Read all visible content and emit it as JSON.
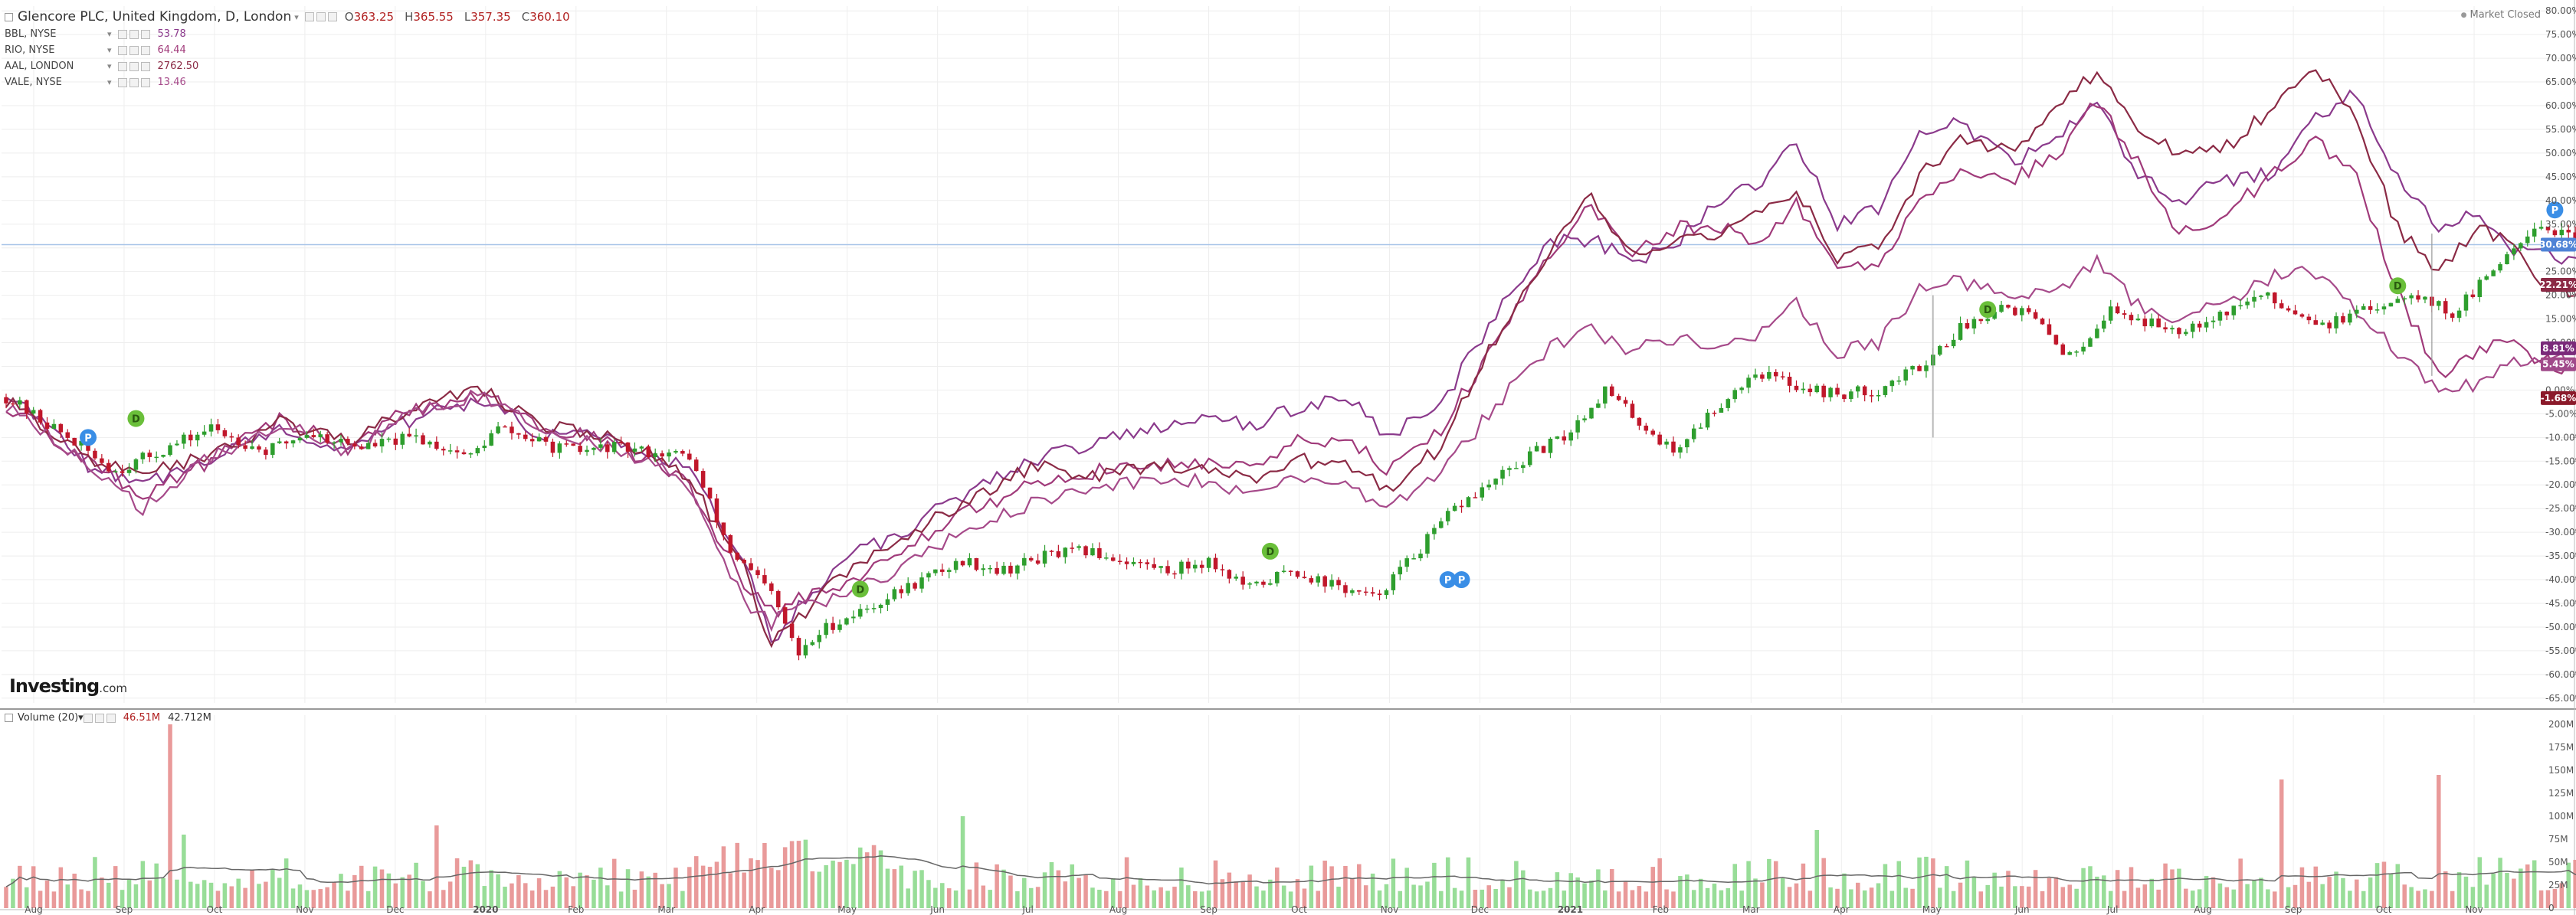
{
  "header": {
    "title": "Glencore PLC, United Kingdom, D, London",
    "open_label": "O",
    "open": "363.25",
    "high_label": "H",
    "high": "365.55",
    "low_label": "L",
    "low": "357.35",
    "close_label": "C",
    "close": "360.10",
    "status": "Market Closed"
  },
  "compare": [
    {
      "symbol": "BBL, NYSE",
      "value": "53.78",
      "color": "#8b3a8c"
    },
    {
      "symbol": "RIO, NYSE",
      "value": "64.44",
      "color": "#a03a7a"
    },
    {
      "symbol": "AAL, LONDON",
      "value": "2762.50",
      "color": "#8b2a45"
    },
    {
      "symbol": "VALE, NYSE",
      "value": "13.46",
      "color": "#a64a8a"
    }
  ],
  "logo": {
    "main": "Investing",
    "suffix": ".com"
  },
  "volume": {
    "label": "Volume (20)",
    "value": "46.51M",
    "ma": "42.712M"
  },
  "colors": {
    "up": "#2e9e2e",
    "down": "#c0172b",
    "vol_up": "#98dd98",
    "vol_down": "#e99a9a",
    "grid": "#eeeeee",
    "hline": "#a8c4e8"
  },
  "chart_data": {
    "type": "line",
    "x": [
      "Aug",
      "Sep",
      "Oct",
      "Nov",
      "Dec",
      "2020",
      "Feb",
      "Mar",
      "Apr",
      "May",
      "Jun",
      "Jul",
      "Aug",
      "Sep",
      "Oct",
      "Nov",
      "Dec",
      "2021",
      "Feb",
      "Mar",
      "Apr",
      "May",
      "Jun",
      "Jul",
      "Aug",
      "Sep",
      "Oct",
      "Nov"
    ],
    "y_axis_ticks": [
      "80.00%",
      "75.00%",
      "70.00%",
      "65.00%",
      "60.00%",
      "55.00%",
      "50.00%",
      "45.00%",
      "40.00%",
      "35.00%",
      "30.00%",
      "25.00%",
      "20.00%",
      "15.00%",
      "10.00%",
      "5.00%",
      "0.00%",
      "-5.00%",
      "-10.00%",
      "-15.00%",
      "-20.00%",
      "-25.00%",
      "-30.00%",
      "-35.00%",
      "-40.00%",
      "-45.00%",
      "-50.00%",
      "-55.00%",
      "-60.00%",
      "-65.00%"
    ],
    "ylim": [
      -66,
      81
    ],
    "badges": [
      {
        "label": "30.68%",
        "value": 30.68,
        "color": "#4f83d6"
      },
      {
        "label": "22.21%",
        "value": 22.21,
        "color": "#8b2a45"
      },
      {
        "label": "8.81%",
        "value": 8.81,
        "color": "#7a2a7a"
      },
      {
        "label": "5.45%",
        "value": 5.45,
        "color": "#a04a8a"
      },
      {
        "label": "-1.68%",
        "value": -1.68,
        "color": "#8b1a2a"
      }
    ],
    "main_series": [
      [
        0,
        -1.5
      ],
      [
        8,
        -9
      ],
      [
        16,
        -17
      ],
      [
        24,
        -12
      ],
      [
        30,
        -8
      ],
      [
        38,
        -13
      ],
      [
        44,
        -9
      ],
      [
        52,
        -12
      ],
      [
        60,
        -10
      ],
      [
        68,
        -14
      ],
      [
        72,
        -8
      ],
      [
        80,
        -12
      ],
      [
        84,
        -13
      ],
      [
        88,
        -12
      ],
      [
        94,
        -13
      ],
      [
        100,
        -14
      ],
      [
        106,
        -34
      ],
      [
        112,
        -43
      ],
      [
        116,
        -56
      ],
      [
        120,
        -50
      ],
      [
        126,
        -46
      ],
      [
        134,
        -40
      ],
      [
        140,
        -36
      ],
      [
        146,
        -38
      ],
      [
        152,
        -35
      ],
      [
        158,
        -34
      ],
      [
        164,
        -36
      ],
      [
        170,
        -38
      ],
      [
        176,
        -36
      ],
      [
        182,
        -42
      ],
      [
        188,
        -38
      ],
      [
        194,
        -41
      ],
      [
        200,
        -44
      ],
      [
        206,
        -35
      ],
      [
        212,
        -25
      ],
      [
        218,
        -19
      ],
      [
        224,
        -13
      ],
      [
        228,
        -10
      ],
      [
        234,
        0
      ],
      [
        240,
        -8
      ],
      [
        244,
        -13
      ],
      [
        250,
        -4
      ],
      [
        256,
        4
      ],
      [
        262,
        1
      ],
      [
        268,
        -1
      ],
      [
        274,
        0
      ],
      [
        280,
        5
      ],
      [
        286,
        13
      ],
      [
        292,
        18
      ],
      [
        296,
        16
      ],
      [
        302,
        7
      ],
      [
        308,
        17
      ],
      [
        314,
        14
      ],
      [
        318,
        13
      ],
      [
        324,
        16
      ],
      [
        330,
        20
      ],
      [
        336,
        16
      ],
      [
        340,
        14
      ],
      [
        346,
        17
      ],
      [
        352,
        21
      ],
      [
        358,
        16
      ],
      [
        362,
        22
      ],
      [
        366,
        29
      ],
      [
        370,
        35
      ],
      [
        374,
        33
      ],
      [
        377,
        30
      ]
    ],
    "compare_series": [
      {
        "values": [
          [
            0,
            0
          ],
          [
            12,
            -16
          ],
          [
            20,
            -20
          ],
          [
            30,
            -14
          ],
          [
            40,
            -8
          ],
          [
            50,
            -13
          ],
          [
            58,
            -7
          ],
          [
            64,
            -4
          ],
          [
            70,
            -2
          ],
          [
            78,
            -9
          ],
          [
            86,
            -10
          ],
          [
            94,
            -13
          ],
          [
            100,
            -17
          ],
          [
            108,
            -36
          ],
          [
            112,
            -53
          ],
          [
            116,
            -46
          ],
          [
            122,
            -36
          ],
          [
            130,
            -31
          ],
          [
            140,
            -22
          ],
          [
            150,
            -15
          ],
          [
            160,
            -11
          ],
          [
            170,
            -7
          ],
          [
            176,
            -5
          ],
          [
            182,
            -8
          ],
          [
            188,
            -4
          ],
          [
            196,
            -1
          ],
          [
            202,
            -10
          ],
          [
            210,
            -3
          ],
          [
            218,
            16
          ],
          [
            226,
            31
          ],
          [
            232,
            32
          ],
          [
            238,
            27
          ],
          [
            244,
            30
          ],
          [
            250,
            40
          ],
          [
            256,
            43
          ],
          [
            262,
            52
          ],
          [
            268,
            35
          ],
          [
            274,
            38
          ],
          [
            280,
            55
          ],
          [
            286,
            56
          ],
          [
            294,
            48
          ],
          [
            300,
            53
          ],
          [
            306,
            60
          ],
          [
            312,
            45
          ],
          [
            318,
            40
          ],
          [
            324,
            44
          ],
          [
            332,
            46
          ],
          [
            338,
            57
          ],
          [
            344,
            63
          ],
          [
            350,
            45
          ],
          [
            356,
            35
          ],
          [
            362,
            37
          ],
          [
            366,
            30
          ],
          [
            370,
            30
          ],
          [
            376,
            27
          ]
        ],
        "color": "#8b3a8c"
      },
      {
        "values": [
          [
            0,
            -3
          ],
          [
            12,
            -15
          ],
          [
            20,
            -22
          ],
          [
            30,
            -15
          ],
          [
            40,
            -6
          ],
          [
            50,
            -12
          ],
          [
            58,
            -5
          ],
          [
            64,
            -3
          ],
          [
            70,
            -1
          ],
          [
            78,
            -8
          ],
          [
            86,
            -10
          ],
          [
            94,
            -15
          ],
          [
            100,
            -20
          ],
          [
            108,
            -41
          ],
          [
            112,
            -47
          ],
          [
            116,
            -44
          ],
          [
            122,
            -42
          ],
          [
            130,
            -35
          ],
          [
            140,
            -26
          ],
          [
            150,
            -20
          ],
          [
            160,
            -17
          ],
          [
            170,
            -16
          ],
          [
            176,
            -15
          ],
          [
            182,
            -17
          ],
          [
            188,
            -11
          ],
          [
            196,
            -10
          ],
          [
            202,
            -17
          ],
          [
            210,
            -8
          ],
          [
            218,
            10
          ],
          [
            226,
            28
          ],
          [
            232,
            39
          ],
          [
            238,
            29
          ],
          [
            244,
            34
          ],
          [
            250,
            35
          ],
          [
            256,
            31
          ],
          [
            262,
            39
          ],
          [
            268,
            27
          ],
          [
            274,
            25
          ],
          [
            280,
            40
          ],
          [
            286,
            46
          ],
          [
            294,
            45
          ],
          [
            300,
            49
          ],
          [
            306,
            61
          ],
          [
            312,
            48
          ],
          [
            318,
            33
          ],
          [
            324,
            36
          ],
          [
            332,
            46
          ],
          [
            338,
            53
          ],
          [
            344,
            45
          ],
          [
            350,
            21
          ],
          [
            356,
            3
          ],
          [
            362,
            9
          ],
          [
            366,
            10
          ],
          [
            370,
            7
          ],
          [
            376,
            4
          ]
        ],
        "color": "#a03a7a"
      },
      {
        "values": [
          [
            0,
            -2
          ],
          [
            12,
            -14
          ],
          [
            20,
            -18
          ],
          [
            30,
            -13
          ],
          [
            40,
            -7
          ],
          [
            50,
            -11
          ],
          [
            58,
            -5
          ],
          [
            64,
            -2
          ],
          [
            70,
            0
          ],
          [
            78,
            -7
          ],
          [
            86,
            -9
          ],
          [
            94,
            -13
          ],
          [
            100,
            -19
          ],
          [
            108,
            -38
          ],
          [
            112,
            -54
          ],
          [
            116,
            -48
          ],
          [
            122,
            -39
          ],
          [
            130,
            -32
          ],
          [
            140,
            -24
          ],
          [
            150,
            -16
          ],
          [
            160,
            -18
          ],
          [
            170,
            -16
          ],
          [
            176,
            -16
          ],
          [
            182,
            -19
          ],
          [
            188,
            -15
          ],
          [
            196,
            -15
          ],
          [
            202,
            -21
          ],
          [
            210,
            -12
          ],
          [
            218,
            11
          ],
          [
            226,
            30
          ],
          [
            232,
            41
          ],
          [
            238,
            28
          ],
          [
            244,
            31
          ],
          [
            250,
            33
          ],
          [
            256,
            37
          ],
          [
            262,
            42
          ],
          [
            268,
            28
          ],
          [
            274,
            30
          ],
          [
            280,
            45
          ],
          [
            286,
            53
          ],
          [
            294,
            50
          ],
          [
            300,
            61
          ],
          [
            306,
            67
          ],
          [
            312,
            55
          ],
          [
            318,
            50
          ],
          [
            324,
            50
          ],
          [
            332,
            60
          ],
          [
            338,
            68
          ],
          [
            344,
            57
          ],
          [
            350,
            34
          ],
          [
            356,
            25
          ],
          [
            362,
            34
          ],
          [
            366,
            32
          ],
          [
            370,
            23
          ],
          [
            376,
            21
          ]
        ],
        "color": "#8b2a45"
      },
      {
        "values": [
          [
            0,
            -3
          ],
          [
            12,
            -16
          ],
          [
            20,
            -25
          ],
          [
            30,
            -14
          ],
          [
            40,
            -7
          ],
          [
            50,
            -13
          ],
          [
            58,
            -6
          ],
          [
            64,
            -3
          ],
          [
            70,
            -1
          ],
          [
            78,
            -9
          ],
          [
            86,
            -11
          ],
          [
            94,
            -15
          ],
          [
            100,
            -21
          ],
          [
            108,
            -45
          ],
          [
            112,
            -49
          ],
          [
            116,
            -46
          ],
          [
            122,
            -44
          ],
          [
            130,
            -38
          ],
          [
            140,
            -30
          ],
          [
            150,
            -24
          ],
          [
            160,
            -20
          ],
          [
            170,
            -20
          ],
          [
            176,
            -19
          ],
          [
            182,
            -22
          ],
          [
            188,
            -19
          ],
          [
            196,
            -20
          ],
          [
            202,
            -24
          ],
          [
            210,
            -18
          ],
          [
            218,
            -3
          ],
          [
            226,
            9
          ],
          [
            232,
            13
          ],
          [
            238,
            8
          ],
          [
            244,
            11
          ],
          [
            250,
            10
          ],
          [
            256,
            12
          ],
          [
            262,
            18
          ],
          [
            268,
            8
          ],
          [
            274,
            10
          ],
          [
            280,
            21
          ],
          [
            286,
            23
          ],
          [
            294,
            20
          ],
          [
            300,
            20
          ],
          [
            306,
            27
          ],
          [
            312,
            18
          ],
          [
            318,
            15
          ],
          [
            324,
            18
          ],
          [
            332,
            24
          ],
          [
            338,
            25
          ],
          [
            344,
            17
          ],
          [
            350,
            8
          ],
          [
            356,
            0
          ],
          [
            362,
            1
          ],
          [
            366,
            6
          ],
          [
            370,
            7
          ],
          [
            376,
            6
          ]
        ],
        "color": "#a64a8a"
      }
    ],
    "events": [
      {
        "label": "P",
        "t": 12,
        "value": -10,
        "color": "#3a8ee6"
      },
      {
        "label": "D",
        "t": 19,
        "value": -6,
        "color": "#6abf3a"
      },
      {
        "label": "D",
        "t": 125,
        "value": -42,
        "color": "#6abf3a"
      },
      {
        "label": "D",
        "t": 185,
        "value": -34,
        "color": "#6abf3a"
      },
      {
        "label": "P",
        "t": 211,
        "value": -40,
        "color": "#3a8ee6"
      },
      {
        "label": "P",
        "t": 213,
        "value": -40,
        "color": "#3a8ee6"
      },
      {
        "label": "D",
        "t": 290,
        "value": 17,
        "color": "#6abf3a"
      },
      {
        "label": "D",
        "t": 350,
        "value": 22,
        "color": "#6abf3a"
      },
      {
        "label": "P",
        "t": 373,
        "value": 38,
        "color": "#3a8ee6"
      }
    ],
    "volume_ticks": [
      "200M",
      "175M",
      "150M",
      "125M",
      "100M",
      "75M",
      "50M",
      "25M",
      "0"
    ],
    "volume_ylim": [
      0,
      210
    ],
    "volume_spikes": [
      [
        24,
        200
      ],
      [
        26,
        80
      ],
      [
        63,
        90
      ],
      [
        140,
        100
      ],
      [
        265,
        85
      ],
      [
        333,
        140
      ],
      [
        356,
        145
      ]
    ]
  }
}
